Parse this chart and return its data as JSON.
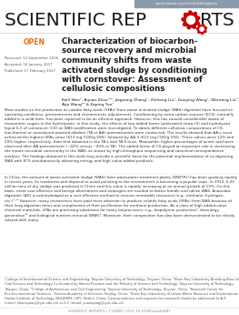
{
  "background_color": "#ffffff",
  "header_bar_color": "#8a9aaa",
  "header_url": "www.nature.com/scientificreports",
  "journal_color": "#1a1a1a",
  "open_color": "#e07020",
  "gear_color": "#cc0000",
  "title_lines": [
    "Characterization of biocarbon-",
    "source recovery and microbial",
    "community shifts from waste",
    "activated sludge by conditioning",
    "with cornstover: Assessment of",
    "cellulosic compositions"
  ],
  "authors": "Kaili Wen¹, Aijuan Zhou¹²³, Jiaguang Zhang¹, Zhihong Liu¹, Guoying Wang¹, Wenrong Liu¹,\nAija Wang¹² & Kaping Yue¹",
  "received": "Received: 12 September 2016",
  "accepted": "Accepted: 16 January 2017",
  "published": "Published: 17 February 2017",
  "abstract_text": "Most studies on the production of volatile fatty acids (VFAs) from waste activated sludge (WAS) digestion have focused on operating conditions, pretreatments and characteristic adjustments. Conditioning by extra carbon sources (ECS), normally added in a solid form, has been reported to be an efficient approach. However, this has caused considerable waste of monomeric sugars in the hydrolyzate. In this study, the effects of two added forms (pretreated straw (S) and hydrolyzed liquid (L)) of cornstover (CS) on WAS acidification were investigated. To obtain different cellulosic compositions of CS, low-thermal or autoclaved assisted alkaline (TA or AA) pretreatments were conducted. The results showed that AA-L most achieved the highest VFAs value (613 mg COD/g VSS), followed by AA-S (613 mg COD/g VSS). These values were 12% and 29% higher, respectively, than that obtained in the TA-L and TA-S tests. Meanwhile, higher percentages of acetic acid were observed after AA pretreatment (~42% versus ~43% in TA). The added forms of CS played an important role in structuring the innate microbial community in the WAS, as shown by high-throughput sequencing and canonical correspondence analysis. The findings obtained in this work may provide a scientific basis for the potential implementation of co-digesting WAS with ECS simultaneously obtaining energy and high value-added products.",
  "body_text": "In China, the amount of waste activated sludge (WAS) from wastewater treatment plants (WWTPs) has been growing rapidly in recent years. Its treatment and disposal to avoid polluting to the environment is becoming a popular topic. In 2013, 6.25 million tons of dry sludge was produced in China and this value is rapidly increasing at an annual growth of 13%. On this basis, more cost-effective and benign alternatives and strategies are needed to better handle and utilize WAS. Anaerobic digestion (AD) is acknowledged as a cost-effective method to recover renewable resources (e.g., methane, hydrogen, etc.)¹·²³ However, many researchers have paid more attention to produce volatile fatty acids (VFAs) from WAS because of their long digestion times and complexities of their purification for methane production. As a class of high added-value chemical materials, VFAs are promising substrates for many bioprocesses, e.g., biopolymer production⁴, bioenergy generation⁵² and biological nutrient removal (BNR)⁶. Moreover, their composition has also been demonstrated to be closely related with many",
  "affiliations": "¹College of Environmental Science and Engineering, Taiyuan University of Technology, Taiyuan, China. ²State Key Laboratory Breeding Base of Coal Science and Technology Co-founded by Shanxi Province and the Ministry of Science and Technology, Taiyuan University of Technology, Taiyuan, China. ³College of Architecture and Civil Engineering, Taiyuan University of Technology, Taiyuan, China. ⁴Research Center for Eco-Environmental Sciences, Chinese Academy of Sciences, Beijing, China. ⁵State Key Laboratory of Urban Water Resource and Environment, Harbin Institute of Technology (SKLUWRE, HIT), Harbin, China. Correspondence and requests for materials should be addressed to A.Z. (email: zhouaijuan@tyut.edu.cn) or K.Y. (email: yuaneping@tyut.edu.cn)",
  "footer": "SCIENTIFIC REPORTS | 7:42887 | DOI: 10.1038/srep42887"
}
